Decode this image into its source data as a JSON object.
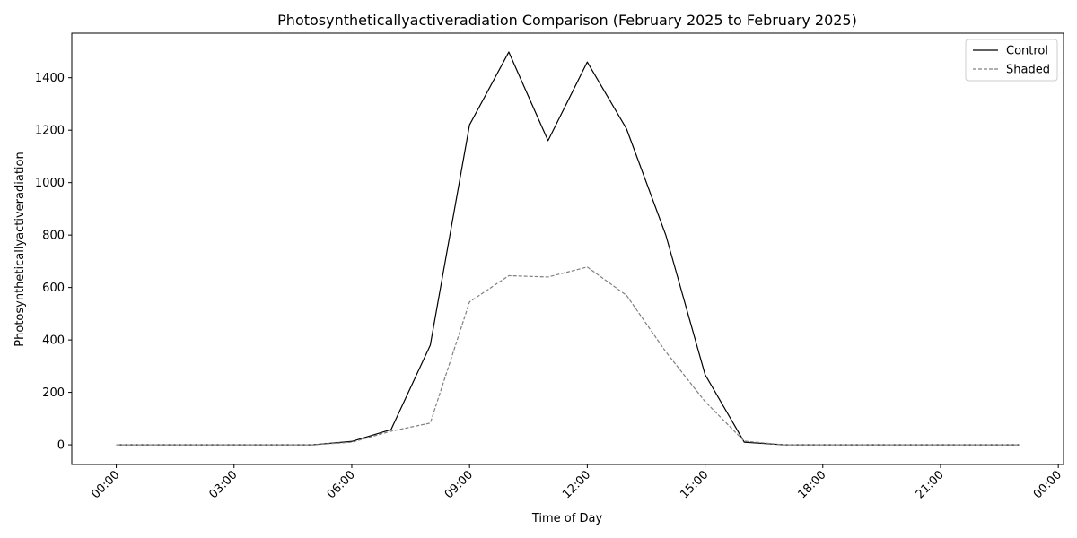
{
  "chart_data": {
    "type": "line",
    "title": "Photosyntheticallyactiveradiation Comparison (February 2025 to February 2025)",
    "xlabel": "Time of Day",
    "ylabel": "Photosyntheticallyactiveradiation",
    "x": [
      "00:00",
      "01:00",
      "02:00",
      "03:00",
      "04:00",
      "05:00",
      "06:00",
      "07:00",
      "08:00",
      "09:00",
      "10:00",
      "11:00",
      "12:00",
      "13:00",
      "14:00",
      "15:00",
      "16:00",
      "17:00",
      "18:00",
      "19:00",
      "20:00",
      "21:00",
      "22:00",
      "23:00"
    ],
    "xlim": [
      "-01:08",
      "24:08"
    ],
    "ylim": [
      -75,
      1570
    ],
    "x_ticks": [
      "00:00",
      "03:00",
      "06:00",
      "09:00",
      "12:00",
      "15:00",
      "18:00",
      "21:00",
      "00:00"
    ],
    "y_ticks": [
      0,
      200,
      400,
      600,
      800,
      1000,
      1200,
      1400
    ],
    "grid": false,
    "legend_position": "top-right",
    "series": [
      {
        "name": "Control",
        "color": "#000000",
        "style": "solid",
        "values": [
          0,
          0,
          0,
          0,
          0,
          0,
          13,
          58,
          380,
          1220,
          1498,
          1160,
          1460,
          1205,
          800,
          268,
          10,
          0,
          0,
          0,
          0,
          0,
          0,
          0
        ]
      },
      {
        "name": "Shaded",
        "color": "#808080",
        "style": "dashed",
        "values": [
          0,
          0,
          0,
          0,
          0,
          0,
          10,
          52,
          83,
          545,
          645,
          640,
          678,
          570,
          355,
          165,
          14,
          0,
          0,
          0,
          0,
          0,
          0,
          0
        ]
      }
    ]
  }
}
